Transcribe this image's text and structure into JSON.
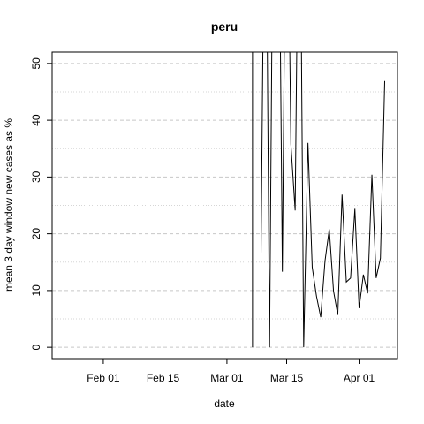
{
  "chart_data": {
    "type": "line",
    "title": "peru",
    "xlabel": "date",
    "ylabel": "mean  3  day window new cases as %",
    "x_tick_labels": [
      "Feb 01",
      "Feb 15",
      "Mar 01",
      "Mar 15",
      "Apr 01"
    ],
    "x_tick_dates": [
      "2020-02-01",
      "2020-02-15",
      "2020-03-01",
      "2020-03-15",
      "2020-04-01"
    ],
    "xlim": [
      "2020-01-20",
      "2020-04-10"
    ],
    "y_ticks": [
      0,
      10,
      20,
      30,
      40,
      50
    ],
    "ylim": [
      -2,
      52
    ],
    "grid": true,
    "series": [
      {
        "x": [
          "2020-03-07",
          "2020-03-07",
          "2020-03-08",
          "2020-03-09",
          "2020-03-10",
          "2020-03-11",
          "2020-03-12",
          "2020-03-13",
          "2020-03-14",
          "2020-03-15",
          "2020-03-16",
          "2020-03-17",
          "2020-03-18",
          "2020-03-19",
          "2020-03-20",
          "2020-03-21",
          "2020-03-22",
          "2020-03-23",
          "2020-03-24",
          "2020-03-25",
          "2020-03-26",
          "2020-03-27",
          "2020-03-28",
          "2020-03-29",
          "2020-03-30",
          "2020-03-31",
          "2020-04-01",
          "2020-04-02",
          "2020-04-03",
          "2020-04-04",
          "2020-04-05",
          "2020-04-06",
          "2020-04-07",
          "2020-04-08"
        ],
        "y": [
          0,
          100,
          null,
          16.7,
          100,
          0,
          100,
          100,
          13.3,
          100,
          35.8,
          24.1,
          100,
          0,
          36,
          14.1,
          9,
          5.3,
          15.2,
          20.8,
          9.9,
          5.7,
          26.9,
          11.5,
          12.2,
          24.4,
          6.9,
          12.8,
          9.5,
          30.4,
          12.2,
          15.7,
          46.9,
          null
        ]
      }
    ]
  }
}
